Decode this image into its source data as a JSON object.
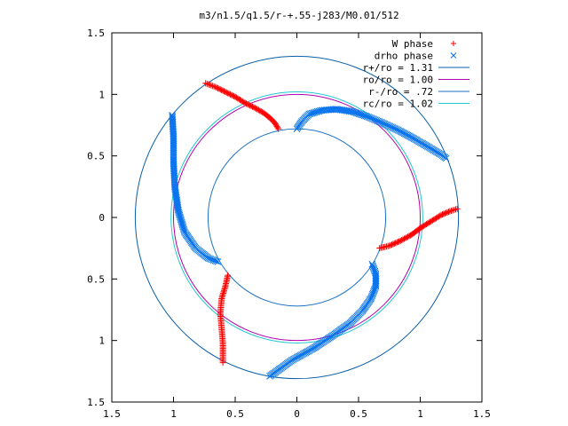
{
  "chart_data": {
    "type": "scatter",
    "title": "m3/n1.5/q1.5/r-+.55-j283/M0.01/512",
    "xlabel": "",
    "ylabel": "",
    "xlim": [
      -1.5,
      1.5
    ],
    "ylim": [
      -1.5,
      1.5
    ],
    "x_ticks": [
      -1.5,
      -1,
      -0.5,
      0,
      0.5,
      1,
      1.5
    ],
    "x_tick_labels": [
      "1.5",
      "1",
      "0.5",
      "0",
      "0.5",
      "1",
      "1.5"
    ],
    "y_ticks": [
      -1.5,
      -1,
      -0.5,
      0,
      0.5,
      1,
      1.5
    ],
    "y_tick_labels": [
      "1.5",
      "1",
      "0.5",
      "0",
      "0.5",
      "1",
      "1.5"
    ],
    "grid": false,
    "legend_position": "top-right",
    "series": [
      {
        "name": "W phase",
        "marker": "plus",
        "color": "#ff0000",
        "arms": [
          [
            [
              -0.74,
              1.09
            ],
            [
              -0.66,
              1.06
            ],
            [
              -0.58,
              1.02
            ],
            [
              -0.5,
              0.98
            ],
            [
              -0.42,
              0.93
            ],
            [
              -0.34,
              0.89
            ],
            [
              -0.27,
              0.85
            ],
            [
              -0.22,
              0.81
            ],
            [
              -0.18,
              0.77
            ],
            [
              -0.15,
              0.72
            ]
          ],
          [
            [
              0.67,
              -0.25
            ],
            [
              0.75,
              -0.23
            ],
            [
              0.84,
              -0.19
            ],
            [
              0.93,
              -0.14
            ],
            [
              1.01,
              -0.08
            ],
            [
              1.09,
              -0.03
            ],
            [
              1.17,
              0.02
            ],
            [
              1.24,
              0.05
            ],
            [
              1.3,
              0.07
            ]
          ],
          [
            [
              -0.56,
              -0.47
            ],
            [
              -0.58,
              -0.56
            ],
            [
              -0.61,
              -0.66
            ],
            [
              -0.62,
              -0.78
            ],
            [
              -0.61,
              -0.9
            ],
            [
              -0.6,
              -1.02
            ],
            [
              -0.6,
              -1.12
            ],
            [
              -0.6,
              -1.18
            ]
          ]
        ]
      },
      {
        "name": "drho phase",
        "marker": "cross",
        "color": "#0a74ed",
        "arms": [
          [
            [
              0.0,
              0.72
            ],
            [
              0.04,
              0.78
            ],
            [
              0.1,
              0.84
            ],
            [
              0.2,
              0.87
            ],
            [
              0.32,
              0.88
            ],
            [
              0.45,
              0.86
            ],
            [
              0.57,
              0.82
            ],
            [
              0.69,
              0.77
            ],
            [
              0.82,
              0.71
            ],
            [
              0.95,
              0.64
            ],
            [
              1.07,
              0.57
            ],
            [
              1.17,
              0.51
            ],
            [
              1.21,
              0.48
            ]
          ],
          [
            [
              0.61,
              -0.38
            ],
            [
              0.64,
              -0.46
            ],
            [
              0.64,
              -0.56
            ],
            [
              0.6,
              -0.66
            ],
            [
              0.53,
              -0.76
            ],
            [
              0.43,
              -0.86
            ],
            [
              0.29,
              -0.96
            ],
            [
              0.14,
              -1.06
            ],
            [
              -0.04,
              -1.16
            ],
            [
              -0.22,
              -1.29
            ]
          ],
          [
            [
              -0.64,
              -0.36
            ],
            [
              -0.72,
              -0.33
            ],
            [
              -0.82,
              -0.25
            ],
            [
              -0.91,
              -0.12
            ],
            [
              -0.96,
              0.05
            ],
            [
              -0.99,
              0.25
            ],
            [
              -1.0,
              0.45
            ],
            [
              -1.0,
              0.65
            ],
            [
              -1.01,
              0.83
            ]
          ]
        ]
      },
      {
        "name": "r+/ro = 1.31",
        "type": "circle",
        "radius": 1.31,
        "color": "#0a5fa8"
      },
      {
        "name": "ro/ro = 1.00",
        "type": "circle",
        "radius": 1.0,
        "color": "#b000b0"
      },
      {
        "name": "r-/ro = .72",
        "type": "circle",
        "radius": 0.72,
        "color": "#1a70c0"
      },
      {
        "name": "rc/ro = 1.02",
        "type": "circle",
        "radius": 1.02,
        "color": "#22c8d0"
      }
    ]
  }
}
